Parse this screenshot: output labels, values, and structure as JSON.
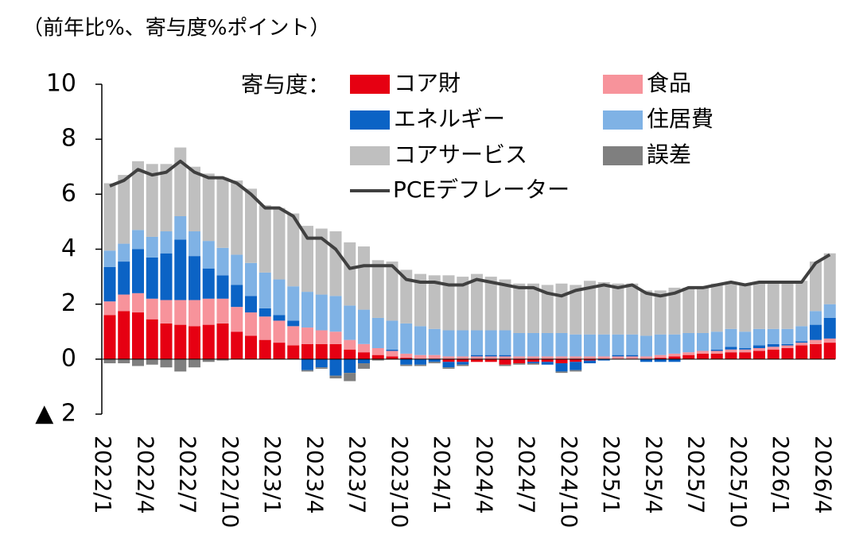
{
  "chart_data": {
    "type": "bar",
    "stacked": true,
    "title": "（前年比%、寄与度%ポイント）",
    "legend_title": "寄与度：",
    "categories": [
      "2022/1",
      null,
      null,
      "2022/4",
      null,
      null,
      "2022/7",
      null,
      null,
      "2022/10",
      null,
      null,
      "2023/1",
      null,
      null,
      "2023/4",
      null,
      null,
      "2023/7",
      null,
      null,
      "2023/10",
      null,
      null,
      "2024/1",
      null,
      null,
      "2024/4",
      null,
      null,
      "2024/7",
      null,
      null,
      "2024/10",
      null,
      null,
      "2025/1",
      null,
      null,
      "2025/4",
      null,
      null,
      "2025/7",
      null,
      null,
      "2025/10",
      null,
      null,
      "2026/1",
      null,
      null,
      "2026/4"
    ],
    "ylim": [
      -2,
      10
    ],
    "yticks": [
      {
        "value": -2,
        "label": "▲ 2"
      },
      0,
      2,
      4,
      6,
      8,
      10
    ],
    "series": [
      {
        "name": "コア財",
        "color": "#e60012",
        "values": [
          1.6,
          1.75,
          1.7,
          1.45,
          1.3,
          1.25,
          1.2,
          1.25,
          1.3,
          1.0,
          0.85,
          0.7,
          0.6,
          0.5,
          0.55,
          0.55,
          0.55,
          0.35,
          0.25,
          0.15,
          0.1,
          0.05,
          0,
          0,
          -0.1,
          -0.1,
          -0.1,
          -0.1,
          -0.2,
          -0.15,
          -0.1,
          -0.1,
          -0.15,
          -0.1,
          -0.05,
          0,
          0,
          0,
          0,
          0.05,
          0.1,
          0.15,
          0.2,
          0.2,
          0.25,
          0.25,
          0.3,
          0.35,
          0.4,
          0.5,
          0.55,
          0.6
        ]
      },
      {
        "name": "食品",
        "color": "#f7939b",
        "values": [
          0.5,
          0.6,
          0.7,
          0.75,
          0.85,
          0.9,
          0.95,
          0.95,
          0.9,
          0.9,
          0.85,
          0.85,
          0.8,
          0.7,
          0.6,
          0.5,
          0.45,
          0.35,
          0.3,
          0.25,
          0.2,
          0.15,
          0.15,
          0.15,
          0.1,
          0.1,
          0.1,
          0.1,
          0.1,
          0.1,
          0.1,
          0.1,
          0.1,
          0.1,
          0.1,
          0.1,
          0.1,
          0.1,
          0.1,
          0.1,
          0.1,
          0.1,
          0.1,
          0.1,
          0.1,
          0.1,
          0.1,
          0.1,
          0.1,
          0.1,
          0.15,
          0.15
        ]
      },
      {
        "name": "エネルギー",
        "color": "#0b63c5",
        "values": [
          1.25,
          1.2,
          1.6,
          1.5,
          1.7,
          2.2,
          1.6,
          1.1,
          0.85,
          0.8,
          0.6,
          0.3,
          0.2,
          0.2,
          -0.4,
          -0.3,
          -0.6,
          -0.5,
          -0.15,
          0,
          0.05,
          -0.2,
          -0.2,
          -0.1,
          -0.2,
          -0.1,
          0.05,
          0.05,
          0.05,
          0,
          -0.05,
          -0.1,
          -0.3,
          -0.3,
          -0.1,
          -0.05,
          0.05,
          0.05,
          -0.1,
          -0.1,
          -0.1,
          0,
          0,
          0.05,
          0.1,
          0.05,
          0.1,
          0.1,
          0.05,
          0.05,
          0.55,
          0.75
        ]
      },
      {
        "name": "住居費",
        "color": "#7fb2e5",
        "values": [
          0.6,
          0.65,
          0.7,
          0.75,
          0.8,
          0.85,
          0.9,
          1.0,
          1.0,
          1.1,
          1.2,
          1.3,
          1.3,
          1.25,
          1.3,
          1.3,
          1.3,
          1.25,
          1.25,
          1.1,
          1.05,
          1.1,
          1.05,
          0.95,
          0.95,
          0.95,
          0.9,
          0.9,
          0.9,
          0.85,
          0.85,
          0.85,
          0.85,
          0.8,
          0.8,
          0.8,
          0.75,
          0.75,
          0.75,
          0.75,
          0.7,
          0.7,
          0.65,
          0.65,
          0.65,
          0.6,
          0.6,
          0.55,
          0.55,
          0.55,
          0.5,
          0.5
        ]
      },
      {
        "name": "コアサービス",
        "color": "#bfbfbf",
        "values": [
          2.45,
          2.5,
          2.5,
          2.65,
          2.45,
          2.5,
          2.35,
          2.45,
          2.55,
          2.7,
          2.7,
          2.45,
          2.6,
          2.65,
          2.4,
          2.4,
          2.35,
          2.3,
          2.3,
          2.1,
          2.15,
          1.95,
          1.9,
          1.95,
          2.0,
          1.95,
          2.05,
          1.95,
          1.85,
          1.8,
          1.8,
          1.75,
          1.8,
          1.8,
          1.95,
          1.9,
          1.85,
          1.85,
          1.65,
          1.6,
          1.7,
          1.65,
          1.65,
          1.75,
          1.65,
          1.75,
          1.65,
          1.75,
          1.75,
          1.65,
          1.8,
          1.85
        ]
      },
      {
        "name": "誤差",
        "color": "#7f7f7f",
        "values": [
          -0.15,
          -0.15,
          -0.25,
          -0.2,
          -0.3,
          -0.45,
          -0.3,
          -0.1,
          -0.05,
          0,
          0,
          0,
          0,
          0,
          -0.05,
          -0.05,
          -0.1,
          -0.3,
          -0.2,
          -0.05,
          0,
          -0.05,
          -0.05,
          -0.05,
          -0.05,
          -0.05,
          0,
          0,
          -0.05,
          -0.05,
          -0.05,
          0,
          -0.05,
          -0.05,
          0,
          0,
          0,
          0,
          0,
          0,
          0,
          0,
          0,
          0,
          0,
          0,
          0,
          0,
          0,
          0,
          0,
          0
        ]
      },
      {
        "name": "PCEデフレーター",
        "type": "line",
        "color": "#404040",
        "values": [
          6.3,
          6.5,
          6.9,
          6.7,
          6.8,
          7.2,
          6.8,
          6.6,
          6.6,
          6.4,
          6.0,
          5.5,
          5.5,
          5.2,
          4.4,
          4.4,
          4.0,
          3.3,
          3.4,
          3.4,
          3.4,
          2.9,
          2.8,
          2.8,
          2.7,
          2.7,
          2.9,
          2.8,
          2.7,
          2.6,
          2.6,
          2.4,
          2.3,
          2.5,
          2.6,
          2.7,
          2.6,
          2.7,
          2.4,
          2.3,
          2.4,
          2.6,
          2.6,
          2.7,
          2.8,
          2.7,
          2.8,
          2.8,
          2.8,
          2.8,
          3.5,
          3.8
        ]
      }
    ]
  }
}
